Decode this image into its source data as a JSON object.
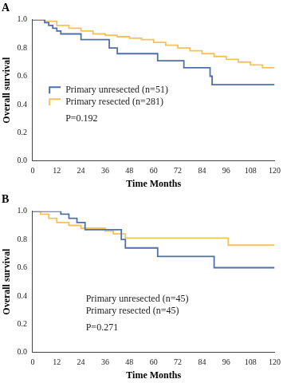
{
  "chart_data": [
    {
      "type": "line",
      "title": "A",
      "x_label": "Time Months",
      "y_label": "Overall survival",
      "xlim": [
        0,
        120
      ],
      "xticks": [
        0,
        12,
        24,
        36,
        48,
        60,
        72,
        84,
        96,
        108,
        120
      ],
      "ylim": [
        0,
        1
      ],
      "yticks": [
        {
          "value": 0,
          "label": "0.0"
        },
        {
          "value": 0.2,
          "label": "0.2"
        },
        {
          "value": 0.4,
          "label": "0.4"
        },
        {
          "value": 0.6,
          "label": "0.6"
        },
        {
          "value": 0.8,
          "label": "0.8"
        },
        {
          "value": 1,
          "label": "1.0"
        }
      ],
      "grid": false,
      "legend": "lower left",
      "line_style": "steps",
      "annotation": "P=0.192",
      "series": [
        {
          "name": "Primary unresected (n=51)",
          "color": "#4f6fa8",
          "x": [
            0,
            6,
            8,
            10,
            12,
            14,
            24,
            38,
            42,
            62,
            75,
            88,
            89,
            120
          ],
          "values": [
            1.0,
            0.98,
            0.96,
            0.94,
            0.92,
            0.9,
            0.86,
            0.8,
            0.76,
            0.71,
            0.66,
            0.6,
            0.54,
            0.54
          ]
        },
        {
          "name": "Primary resected (n=281)",
          "color": "#f5c15c",
          "x": [
            0,
            6,
            12,
            18,
            24,
            30,
            36,
            42,
            48,
            54,
            60,
            66,
            72,
            78,
            84,
            90,
            96,
            102,
            108,
            114,
            120
          ],
          "values": [
            1.0,
            0.99,
            0.96,
            0.94,
            0.92,
            0.9,
            0.89,
            0.88,
            0.87,
            0.86,
            0.84,
            0.82,
            0.8,
            0.78,
            0.76,
            0.74,
            0.72,
            0.7,
            0.68,
            0.66,
            0.66
          ]
        }
      ]
    },
    {
      "type": "line",
      "title": "B",
      "x_label": "Time Months",
      "y_label": "Overall survival",
      "xlim": [
        0,
        120
      ],
      "xticks": [
        0,
        12,
        24,
        36,
        48,
        60,
        72,
        84,
        96,
        108,
        120
      ],
      "ylim": [
        0,
        1
      ],
      "yticks": [
        {
          "value": 0,
          "label": "0.0"
        },
        {
          "value": 0.2,
          "label": "0.2"
        },
        {
          "value": 0.4,
          "label": "0.4"
        },
        {
          "value": 0.6,
          "label": "0.6"
        },
        {
          "value": 0.8,
          "label": "0.8"
        },
        {
          "value": 1,
          "label": "1.0"
        }
      ],
      "grid": false,
      "legend": "lower left",
      "line_style": "steps",
      "annotation": "P=0.271",
      "series": [
        {
          "name": "Primary unresected (n=45)",
          "color": "#4f6fa8",
          "x": [
            0,
            14,
            18,
            22,
            26,
            44,
            46,
            62,
            90,
            120
          ],
          "values": [
            1.0,
            0.98,
            0.95,
            0.92,
            0.87,
            0.8,
            0.74,
            0.68,
            0.6,
            0.6
          ]
        },
        {
          "name": "Primary resected (n=45)",
          "color": "#f5c15c",
          "x": [
            0,
            4,
            8,
            12,
            18,
            24,
            36,
            40,
            46,
            97,
            120
          ],
          "values": [
            1.0,
            0.98,
            0.95,
            0.92,
            0.9,
            0.88,
            0.86,
            0.84,
            0.81,
            0.76,
            0.76
          ]
        }
      ]
    }
  ]
}
